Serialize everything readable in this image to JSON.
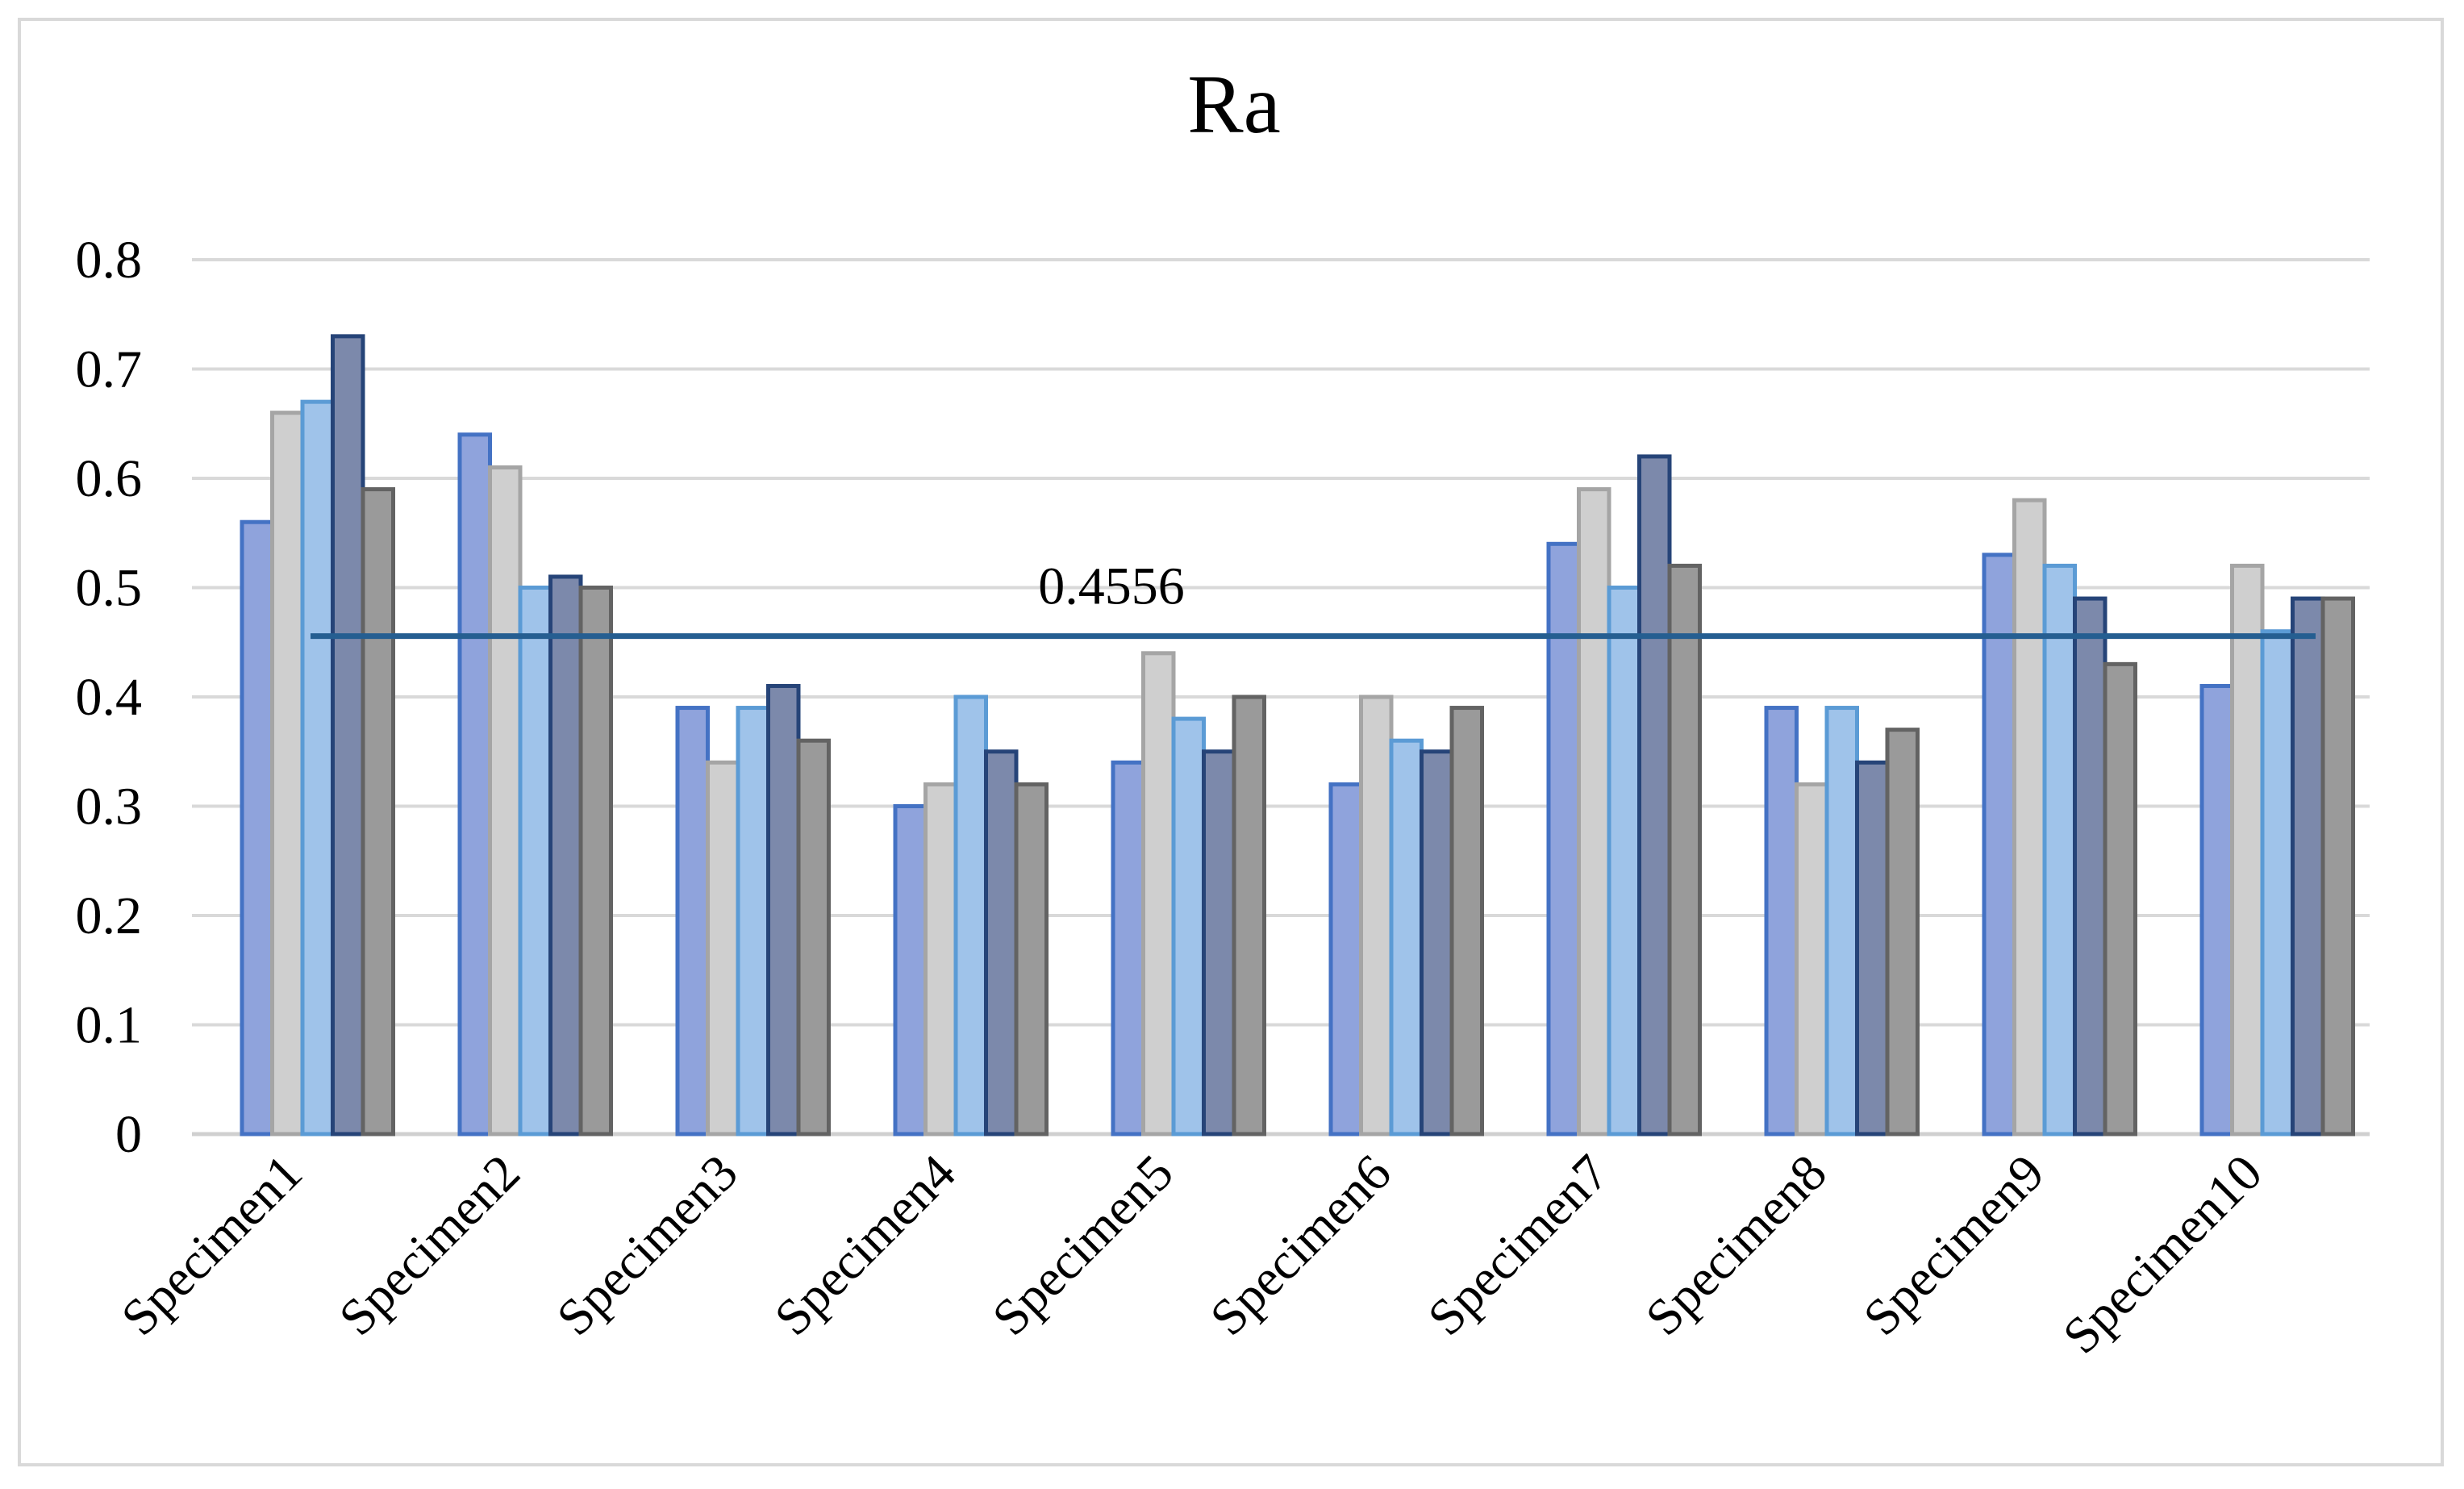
{
  "chart_data": {
    "type": "bar",
    "title": "Ra",
    "ylim": [
      0,
      0.8
    ],
    "yticks": [
      "0",
      "0.1",
      "0.2",
      "0.3",
      "0.4",
      "0.5",
      "0.6",
      "0.7",
      "0.8"
    ],
    "grid": true,
    "legend": "none",
    "categories": [
      "Specimen1",
      "Specimen2",
      "Specimen3",
      "Specimen4",
      "Specimen5",
      "Specimen6",
      "Specimen7",
      "Specimen8",
      "Specimen9",
      "Specimen10"
    ],
    "series": [
      {
        "values": [
          0.56,
          0.64,
          0.39,
          0.3,
          0.34,
          0.32,
          0.54,
          0.39,
          0.53,
          0.41
        ],
        "color": "#8fa3dc",
        "stroke": "#4472c4"
      },
      {
        "values": [
          0.66,
          0.61,
          0.34,
          0.32,
          0.44,
          0.4,
          0.59,
          0.32,
          0.58,
          0.52
        ],
        "color": "#cfcfcf",
        "stroke": "#a5a5a5"
      },
      {
        "values": [
          0.67,
          0.5,
          0.39,
          0.4,
          0.38,
          0.36,
          0.5,
          0.39,
          0.52,
          0.46
        ],
        "color": "#9fc3ea",
        "stroke": "#5b9bd5"
      },
      {
        "values": [
          0.73,
          0.51,
          0.41,
          0.35,
          0.35,
          0.35,
          0.62,
          0.34,
          0.49,
          0.49
        ],
        "color": "#7c89ab",
        "stroke": "#264478"
      },
      {
        "values": [
          0.59,
          0.5,
          0.36,
          0.32,
          0.4,
          0.39,
          0.52,
          0.37,
          0.43,
          0.49
        ],
        "color": "#9a9a9a",
        "stroke": "#636363"
      }
    ],
    "mean_line": {
      "value": 0.4556,
      "label": "0.4556",
      "color": "#255e91"
    }
  }
}
